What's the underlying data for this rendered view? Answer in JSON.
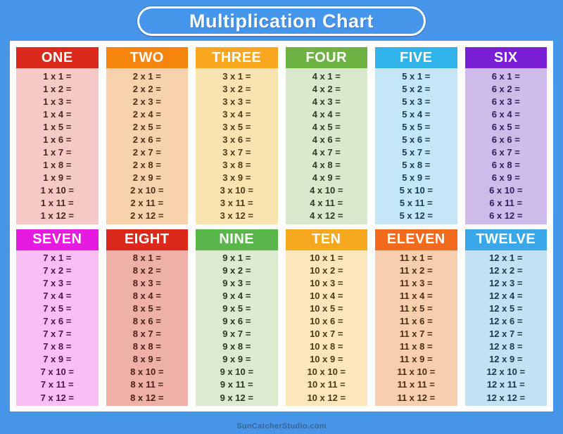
{
  "title": "Multiplication Chart",
  "footer": "SunCatcherStudio.com",
  "colors": {
    "background": "#4796EA",
    "panel": "#FEFEFE",
    "title_text": "#FFFFFF",
    "title_border": "#FFFFFF",
    "footer_text": "#3D6390"
  },
  "columns": [
    {
      "label": "ONE",
      "factor": 1,
      "header_bg": "#DB2A1C",
      "body_bg": "#F5C9C6",
      "text_color": "#4B2522",
      "rows": [
        "1 x 1 =",
        "1 x 2 =",
        "1 x 3 =",
        "1 x 4 =",
        "1 x 5 =",
        "1 x 6 =",
        "1 x 7 =",
        "1 x 8 =",
        "1 x 9 =",
        "1 x 10 =",
        "1 x 11 =",
        "1 x 12 ="
      ]
    },
    {
      "label": "TWO",
      "factor": 2,
      "header_bg": "#F6850D",
      "body_bg": "#F8D2AC",
      "text_color": "#4E3014",
      "rows": [
        "2 x 1 =",
        "2 x 2 =",
        "2 x 3 =",
        "2 x 4 =",
        "2 x 5 =",
        "2 x 6 =",
        "2 x 7 =",
        "2 x 8 =",
        "2 x 9 =",
        "2 x 10 =",
        "2 x 11 =",
        "2 x 12 ="
      ]
    },
    {
      "label": "THREE",
      "factor": 3,
      "header_bg": "#F8A71E",
      "body_bg": "#FAE3B0",
      "text_color": "#4C3A14",
      "rows": [
        "3 x 1 =",
        "3 x 2 =",
        "3 x 3 =",
        "3 x 4 =",
        "3 x 5 =",
        "3 x 6 =",
        "3 x 7 =",
        "3 x 8 =",
        "3 x 9 =",
        "3 x 10 =",
        "3 x 11 =",
        "3 x 12 ="
      ]
    },
    {
      "label": "FOUR",
      "factor": 4,
      "header_bg": "#6DB344",
      "body_bg": "#D9E9CB",
      "text_color": "#2E3C25",
      "rows": [
        "4 x 1 =",
        "4 x 2 =",
        "4 x 3 =",
        "4 x 4 =",
        "4 x 5 =",
        "4 x 6 =",
        "4 x 7 =",
        "4 x 8 =",
        "4 x 9 =",
        "4 x 10 =",
        "4 x 11 =",
        "4 x 12 ="
      ]
    },
    {
      "label": "FIVE",
      "factor": 5,
      "header_bg": "#2FB3E9",
      "body_bg": "#C4E6F7",
      "text_color": "#173B58",
      "rows": [
        "5 x 1 =",
        "5 x 2 =",
        "5 x 3 =",
        "5 x 4 =",
        "5 x 5 =",
        "5 x 6 =",
        "5 x 7 =",
        "5 x 8 =",
        "5 x 9 =",
        "5 x 10 =",
        "5 x 11 =",
        "5 x 12 ="
      ]
    },
    {
      "label": "SIX",
      "factor": 6,
      "header_bg": "#7B1FD6",
      "body_bg": "#CEBBEA",
      "text_color": "#331B5C",
      "rows": [
        "6 x 1 =",
        "6 x 2 =",
        "6 x 3 =",
        "6 x 4 =",
        "6 x 5 =",
        "6 x 6 =",
        "6 x 7 =",
        "6 x 8 =",
        "6 x 9 =",
        "6 x 10 =",
        "6 x 11 =",
        "6 x 12 ="
      ]
    },
    {
      "label": "SEVEN",
      "factor": 7,
      "header_bg": "#E61BDF",
      "body_bg": "#F9BEF3",
      "text_color": "#4E1347",
      "rows": [
        "7 x 1 =",
        "7 x 2 =",
        "7 x 3 =",
        "7 x 4 =",
        "7 x 5 =",
        "7 x 6 =",
        "7 x 7 =",
        "7 x 8 =",
        "7 x 9 =",
        "7 x 10 =",
        "7 x 11 =",
        "7 x 12 ="
      ]
    },
    {
      "label": "EIGHT",
      "factor": 8,
      "header_bg": "#DB2A1C",
      "body_bg": "#EFB0A7",
      "text_color": "#4B201B",
      "rows": [
        "8 x 1 =",
        "8 x 2 =",
        "8 x 3 =",
        "8 x 4 =",
        "8 x 5 =",
        "8 x 6 =",
        "8 x 7 =",
        "8 x 8 =",
        "8 x 9 =",
        "8 x 10 =",
        "8 x 11 =",
        "8 x 12 ="
      ]
    },
    {
      "label": "NINE",
      "factor": 9,
      "header_bg": "#59B64A",
      "body_bg": "#DCEACF",
      "text_color": "#273A20",
      "rows": [
        "9 x 1 =",
        "9 x 2 =",
        "9 x 3 =",
        "9 x 4 =",
        "9 x 5 =",
        "9 x 6 =",
        "9 x 7 =",
        "9 x 8 =",
        "9 x 9 =",
        "9 x 10 =",
        "9 x 11 =",
        "9 x 12 ="
      ]
    },
    {
      "label": "TEN",
      "factor": 10,
      "header_bg": "#F6A81E",
      "body_bg": "#FBE7BB",
      "text_color": "#4C3A14",
      "rows": [
        "10 x 1 =",
        "10 x 2 =",
        "10 x 3 =",
        "10 x 4 =",
        "10 x 5 =",
        "10 x 6 =",
        "10 x 7 =",
        "10 x 8 =",
        "10 x 9 =",
        "10 x 10 =",
        "10 x 11 =",
        "10 x 12 ="
      ]
    },
    {
      "label": "ELEVEN",
      "factor": 11,
      "header_bg": "#F26A1B",
      "body_bg": "#F7CFAE",
      "text_color": "#4A2C13",
      "rows": [
        "11 x 1 =",
        "11 x 2 =",
        "11 x 3 =",
        "11 x 4 =",
        "11 x 5 =",
        "11 x 6 =",
        "11 x 7 =",
        "11 x 8 =",
        "11 x 9 =",
        "11 x 10 =",
        "11 x 11 =",
        "11 x 12 ="
      ]
    },
    {
      "label": "TWELVE",
      "factor": 12,
      "header_bg": "#38A8E8",
      "body_bg": "#C2E2F3",
      "text_color": "#17384E",
      "rows": [
        "12 x 1 =",
        "12 x 2 =",
        "12 x 3 =",
        "12 x 4 =",
        "12 x 5 =",
        "12 x 6 =",
        "12 x 7 =",
        "12 x 8 =",
        "12 x 9 =",
        "12 x 10 =",
        "12 x 11 =",
        "12 x 12 ="
      ]
    }
  ]
}
